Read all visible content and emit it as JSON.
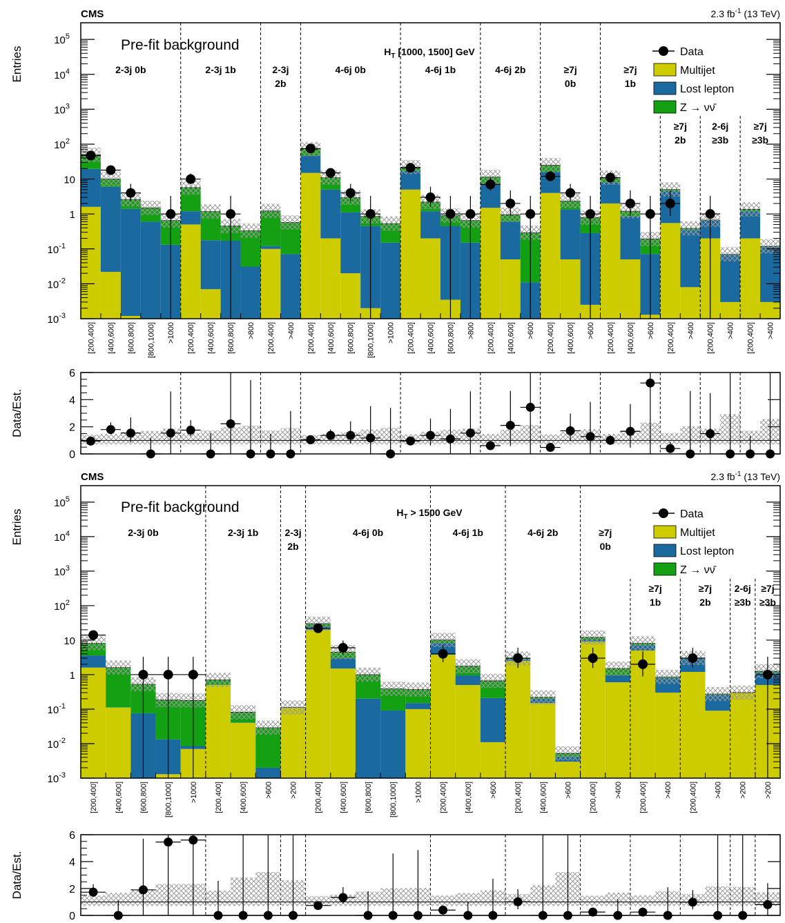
{
  "chart_data": [
    {
      "type": "bar",
      "experiment": "CMS",
      "lumi": "2.3 fb",
      "lumi_exp": "-1",
      "lumi_energy": "(13 TeV)",
      "ylabel": "Entries",
      "ratio_ylabel": "Data/Est.",
      "fit_label": "Pre-fit background",
      "ht_label": "H",
      "ht_sub": "T",
      "ht_range": "[1000, 1500] GeV",
      "ylim": [
        0.001,
        300000
      ],
      "ratio_ylim": [
        0,
        6
      ],
      "ylog": true,
      "y_tick_exponents": [
        -3,
        -2,
        -1,
        0,
        1,
        2,
        3,
        4,
        5
      ],
      "ratio_yticks": [
        "0",
        "2",
        "4",
        "6"
      ],
      "legend": [
        "Data",
        "Multijet",
        "Lost lepton",
        "Z → νν̄"
      ],
      "legend_placement": "top-right",
      "colors": {
        "multijet": "#cccc00",
        "lost_lepton": "#1a6aa0",
        "znunu": "#13a013",
        "data": "#000000",
        "uncertainty": "#a8a8a8"
      },
      "regions": [
        {
          "label": [
            "2-3j 0b"
          ],
          "start": 0,
          "n": 5,
          "label_row": "top"
        },
        {
          "label": [
            "2-3j 1b"
          ],
          "start": 5,
          "n": 4,
          "label_row": "top"
        },
        {
          "label": [
            "2-3j",
            "2b"
          ],
          "start": 9,
          "n": 2,
          "label_row": "top"
        },
        {
          "label": [
            "4-6j 0b"
          ],
          "start": 11,
          "n": 5,
          "label_row": "top"
        },
        {
          "label": [
            "4-6j 1b"
          ],
          "start": 16,
          "n": 4,
          "label_row": "top"
        },
        {
          "label": [
            "4-6j 2b"
          ],
          "start": 20,
          "n": 3,
          "label_row": "top"
        },
        {
          "label": [
            "≥7j",
            "0b"
          ],
          "start": 23,
          "n": 3,
          "label_row": "top"
        },
        {
          "label": [
            "≥7j",
            "1b"
          ],
          "start": 26,
          "n": 3,
          "label_row": "top"
        },
        {
          "label": [
            "≥7j",
            "2b"
          ],
          "start": 29,
          "n": 2,
          "label_row": "bottom"
        },
        {
          "label": [
            "2-6j",
            "≥3b"
          ],
          "start": 31,
          "n": 2,
          "label_row": "bottom"
        },
        {
          "label": [
            "≥7j",
            "≥3b"
          ],
          "start": 33,
          "n": 2,
          "label_row": "bottom"
        }
      ],
      "bins": [
        "[200,400]",
        "[400,600]",
        "[600,800]",
        "[800,1000]",
        ">1000",
        "[200,400]",
        "[400,600]",
        "[600,800]",
        ">800",
        "[200,400]",
        ">400",
        "[200,400]",
        "[400,600]",
        "[600,800]",
        "[800,1000]",
        ">1000",
        "[200,400]",
        "[400,600]",
        "[600,800]",
        ">800",
        "[200,400]",
        "[400,600]",
        ">600",
        "[200,400]",
        "[400,600]",
        ">600",
        "[200,400]",
        "[400,600]",
        ">600",
        "[200,400]",
        ">400",
        "[200,400]",
        ">400",
        "[200,400]",
        ">400"
      ],
      "series": [
        {
          "name": "Multijet",
          "values": [
            1.6,
            0.022,
            0.0012,
            0.001,
            0.001,
            0.5,
            0.007,
            0.001,
            0.001,
            0.1,
            0.001,
            15,
            0.2,
            0.02,
            0.002,
            0.001,
            5,
            0.2,
            0.0035,
            0.001,
            1.5,
            0.05,
            0.001,
            4,
            0.05,
            0.0025,
            2,
            0.05,
            0.0013,
            0.55,
            0.008,
            0.2,
            0.003,
            0.2,
            0.003
          ]
        },
        {
          "name": "Lost lepton",
          "values": [
            18,
            6,
            1.4,
            0.6,
            0.13,
            0.7,
            0.17,
            0.17,
            0.03,
            0.02,
            0.07,
            32,
            4.8,
            1.1,
            0.45,
            0.15,
            12,
            1.0,
            0.45,
            0.15,
            6,
            0.55,
            0.01,
            12,
            1.3,
            0.28,
            6,
            0.8,
            0.07,
            4,
            0.35,
            0.45,
            0.065,
            1.0,
            0.11
          ]
        },
        {
          "name": "Z → νν̄",
          "values": [
            30,
            4,
            1.2,
            0.9,
            0.52,
            4.5,
            1.0,
            0.28,
            0.3,
            1.1,
            0.5,
            25,
            6,
            1.8,
            0.4,
            0.38,
            5,
            1.0,
            0.45,
            0.5,
            4,
            0.35,
            0.28,
            9,
            1.0,
            0.5,
            3,
            0.35,
            0.12,
            0.5,
            0.03,
            0.02,
            0.002,
            0.15,
            0.005
          ]
        },
        {
          "name": "Data",
          "values": [
            47,
            18,
            4,
            0,
            1,
            10,
            0,
            1,
            0,
            0,
            0,
            75,
            15,
            4,
            1,
            0,
            21,
            3,
            1,
            1,
            7,
            2,
            1,
            12,
            4,
            1,
            11,
            2,
            1,
            2,
            0,
            1,
            0,
            0,
            0
          ]
        }
      ]
    },
    {
      "type": "bar",
      "experiment": "CMS",
      "lumi": "2.3 fb",
      "lumi_exp": "-1",
      "lumi_energy": "(13 TeV)",
      "ylabel": "Entries",
      "ratio_ylabel": "Data/Est.",
      "fit_label": "Pre-fit background",
      "ht_label": "H",
      "ht_sub": "T",
      "ht_range": "> 1500 GeV",
      "ylim": [
        0.001,
        300000
      ],
      "ratio_ylim": [
        0,
        6
      ],
      "ylog": true,
      "y_tick_exponents": [
        -3,
        -2,
        -1,
        0,
        1,
        2,
        3,
        4,
        5
      ],
      "ratio_yticks": [
        "0",
        "2",
        "4",
        "6"
      ],
      "legend": [
        "Data",
        "Multijet",
        "Lost lepton",
        "Z → νν̄"
      ],
      "legend_placement": "top-right",
      "colors": {
        "multijet": "#cccc00",
        "lost_lepton": "#1a6aa0",
        "znunu": "#13a013",
        "data": "#000000",
        "uncertainty": "#a8a8a8"
      },
      "regions": [
        {
          "label": [
            "2-3j 0b"
          ],
          "start": 0,
          "n": 5,
          "label_row": "top"
        },
        {
          "label": [
            "2-3j 1b"
          ],
          "start": 5,
          "n": 3,
          "label_row": "top"
        },
        {
          "label": [
            "2-3j",
            "2b"
          ],
          "start": 8,
          "n": 1,
          "label_row": "top"
        },
        {
          "label": [
            "4-6j 0b"
          ],
          "start": 9,
          "n": 5,
          "label_row": "top"
        },
        {
          "label": [
            "4-6j 1b"
          ],
          "start": 14,
          "n": 3,
          "label_row": "top"
        },
        {
          "label": [
            "4-6j 2b"
          ],
          "start": 17,
          "n": 3,
          "label_row": "top"
        },
        {
          "label": [
            "≥7j",
            "0b"
          ],
          "start": 20,
          "n": 2,
          "label_row": "top"
        },
        {
          "label": [
            "≥7j",
            "1b"
          ],
          "start": 22,
          "n": 2,
          "label_row": "bottom"
        },
        {
          "label": [
            "≥7j",
            "2b"
          ],
          "start": 24,
          "n": 2,
          "label_row": "bottom"
        },
        {
          "label": [
            "2-6j",
            "≥3b"
          ],
          "start": 26,
          "n": 1,
          "label_row": "bottom"
        },
        {
          "label": [
            "≥7j",
            "≥3b"
          ],
          "start": 27,
          "n": 1,
          "label_row": "bottom"
        }
      ],
      "bins": [
        "[200,400]",
        "[400,600]",
        "[600,800]",
        "[800,1000]",
        ">1000",
        "[200,400]",
        "[400,600]",
        ">600",
        ">200",
        "[200,400]",
        "[400,600]",
        "[600,800]",
        "[800,1000]",
        ">1000",
        "[200,400]",
        "[400,600]",
        ">600",
        "[200,400]",
        "[400,600]",
        ">600",
        "[200,400]",
        ">400",
        "[200,400]",
        ">400",
        "[200,400]",
        ">400",
        ">200",
        ">200"
      ],
      "series": [
        {
          "name": "Multijet",
          "values": [
            1.6,
            0.11,
            0.001,
            0.0013,
            0.007,
            0.5,
            0.04,
            0.001,
            0.11,
            20,
            1.5,
            0.001,
            0.001,
            0.1,
            3.8,
            0.5,
            0.011,
            2.5,
            0.15,
            0.003,
            9,
            0.6,
            5,
            0.3,
            1.2,
            0.09,
            0.3,
            0.5
          ]
        },
        {
          "name": "Lost lepton",
          "values": [
            2,
            0.001,
            0.075,
            0.012,
            0.0015,
            0.001,
            0.001,
            0.001,
            0.001,
            5,
            1.5,
            0.2,
            0.09,
            0.05,
            4.5,
            0.45,
            0.2,
            0.3,
            0.05,
            0.0012,
            1.2,
            0.35,
            2.2,
            0.5,
            1.7,
            0.17,
            0.001,
            0.65
          ]
        },
        {
          "name": "Z → νν̄",
          "values": [
            4.5,
            1.5,
            0.45,
            0.17,
            0.17,
            0.2,
            0.04,
            0.027,
            0.001,
            5,
            1.5,
            0.8,
            0.3,
            0.22,
            1.8,
            0.8,
            0.45,
            0.15,
            0.02,
            0.001,
            1.8,
            0.55,
            0.9,
            0.06,
            0.15,
            0.015,
            0.001,
            0.1
          ]
        },
        {
          "name": "Data",
          "values": [
            14,
            0,
            1,
            1,
            1,
            0,
            0,
            0,
            0,
            22,
            6,
            0,
            0,
            0,
            4,
            0,
            0,
            3,
            0,
            0,
            3,
            0,
            2,
            0,
            3,
            0,
            0,
            1
          ]
        }
      ]
    }
  ]
}
